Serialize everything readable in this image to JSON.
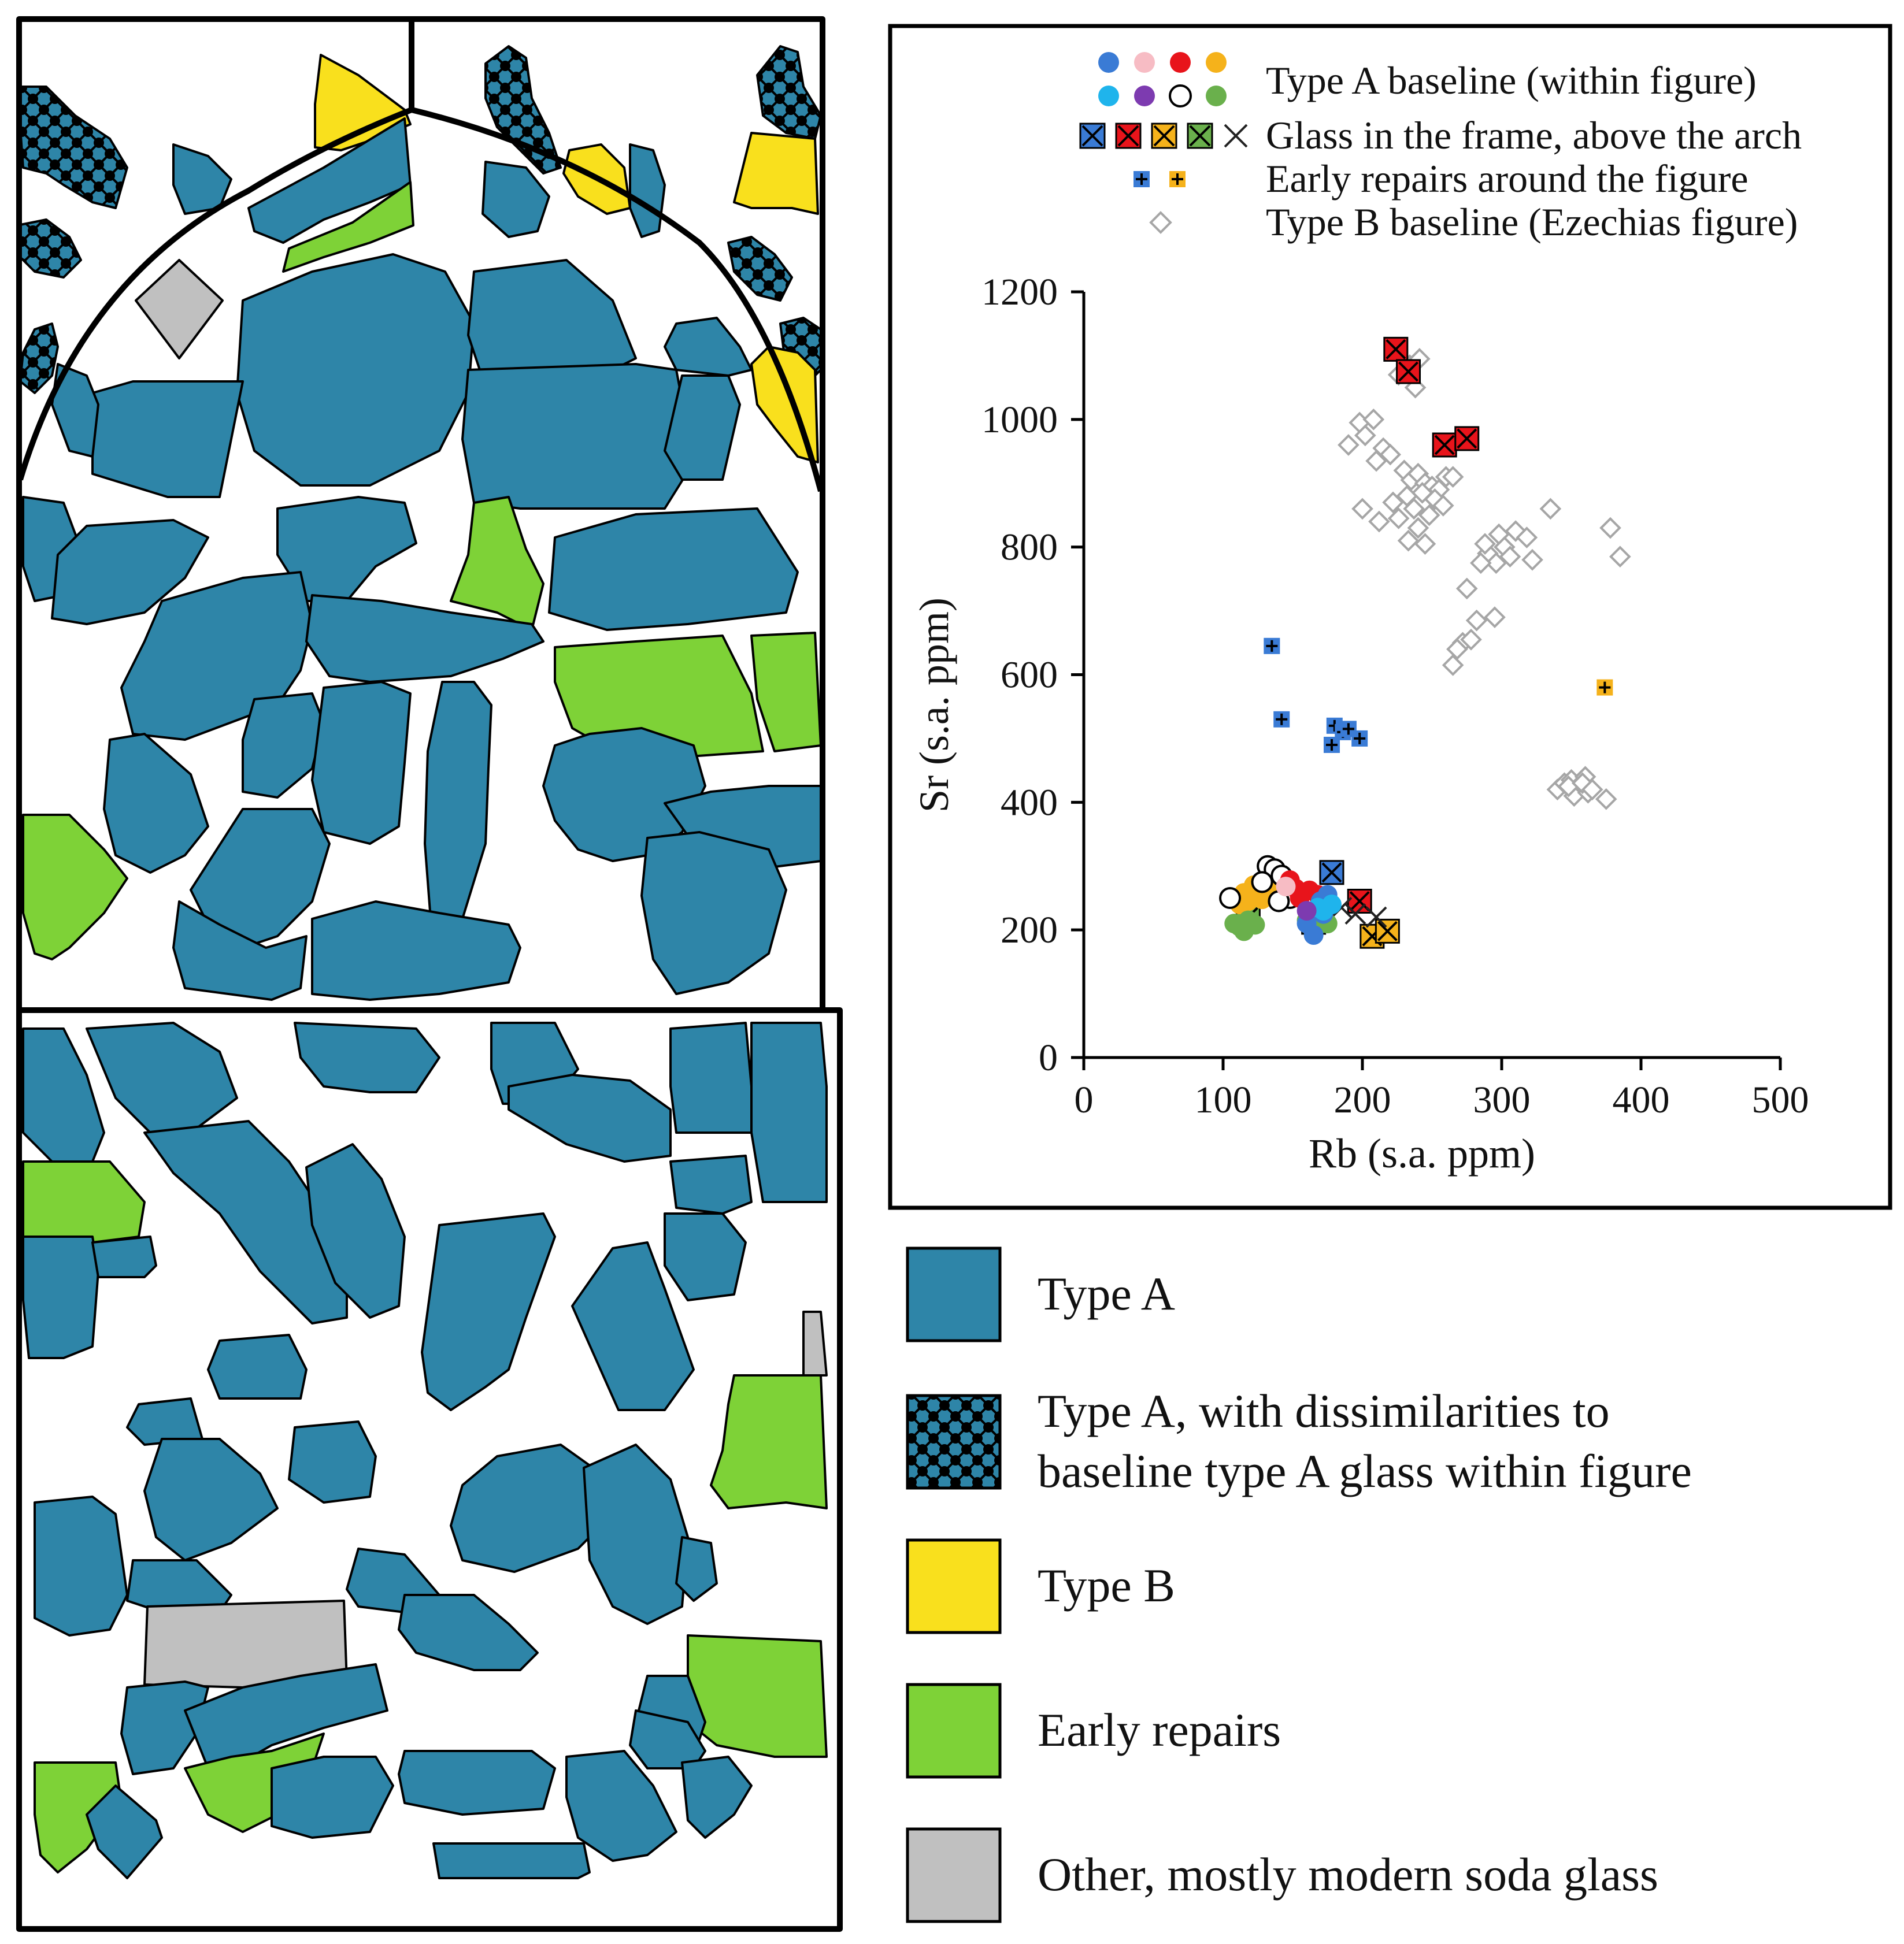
{
  "colors": {
    "type_a": "#2e85a8",
    "type_b": "#f9e01d",
    "early_repairs": "#7ed237",
    "other": "#c0c0c0",
    "outline": "#000000",
    "type_b_baseline": "#a6a6a6"
  },
  "material_legend": [
    {
      "key": "type_a",
      "lines": [
        "Type A"
      ],
      "swatch": "type-a-swatch"
    },
    {
      "key": "type_a_dissimilar",
      "lines": [
        "Type A, with dissimilarities to",
        "baseline type A glass within figure"
      ],
      "swatch": "type-a-dissimilar-swatch"
    },
    {
      "key": "type_b",
      "lines": [
        "Type B"
      ],
      "swatch": "type-b-swatch"
    },
    {
      "key": "early_repairs",
      "lines": [
        "Early repairs"
      ],
      "swatch": "early-repairs-swatch"
    },
    {
      "key": "other",
      "lines": [
        "Other, mostly modern soda glass"
      ],
      "swatch": "other-swatch"
    }
  ],
  "chart_data": {
    "type": "scatter",
    "xlabel": "Rb (s.a. ppm)",
    "ylabel": "Sr (s.a. ppm)",
    "xlim": [
      0,
      500
    ],
    "ylim": [
      0,
      1200
    ],
    "xticks": [
      0,
      100,
      200,
      300,
      400,
      500
    ],
    "yticks": [
      0,
      200,
      400,
      600,
      800,
      1000,
      1200
    ],
    "grid": false,
    "legend_position": "top",
    "legend": [
      {
        "label": "Type A baseline (within figure)",
        "marker": "filled-circles",
        "colors": [
          "#3a7bd5",
          "#f7bcc4",
          "#e8141b",
          "#f5b21b",
          "#1fb4ec",
          "#7d3bb0",
          "#ffffff",
          "#6ab04c"
        ]
      },
      {
        "label": "Glass in the frame, above the arch",
        "marker": "crossed-squares",
        "colors": [
          "#3a7bd5",
          "#e8141b",
          "#f5b21b",
          "#6ab04c",
          "none"
        ]
      },
      {
        "label": "Early repairs around the figure",
        "marker": "plus-squares",
        "colors": [
          "#3a7bd5",
          "#f5b21b"
        ]
      },
      {
        "label": "Type B baseline (Ezechias figure)",
        "marker": "open-diamond",
        "colors": [
          "#a6a6a6"
        ]
      }
    ],
    "series": [
      {
        "marker": "diamond",
        "color": "#a6a6a6",
        "points": [
          [
            225,
            1105
          ],
          [
            234,
            1085
          ],
          [
            241,
            1095
          ],
          [
            226,
            1070
          ],
          [
            238,
            1050
          ],
          [
            198,
            995
          ],
          [
            208,
            1000
          ],
          [
            202,
            975
          ],
          [
            215,
            955
          ],
          [
            190,
            960
          ],
          [
            210,
            935
          ],
          [
            220,
            945
          ],
          [
            230,
            920
          ],
          [
            235,
            905
          ],
          [
            240,
            915
          ],
          [
            245,
            900
          ],
          [
            250,
            895
          ],
          [
            255,
            890
          ],
          [
            260,
            910
          ],
          [
            232,
            880
          ],
          [
            243,
            885
          ],
          [
            252,
            875
          ],
          [
            222,
            870
          ],
          [
            237,
            860
          ],
          [
            248,
            850
          ],
          [
            258,
            865
          ],
          [
            226,
            845
          ],
          [
            212,
            840
          ],
          [
            200,
            860
          ],
          [
            240,
            830
          ],
          [
            245,
            805
          ],
          [
            233,
            810
          ],
          [
            265,
            910
          ],
          [
            335,
            860
          ],
          [
            290,
            790
          ],
          [
            298,
            820
          ],
          [
            302,
            800
          ],
          [
            310,
            825
          ],
          [
            318,
            815
          ],
          [
            322,
            780
          ],
          [
            296,
            775
          ],
          [
            306,
            785
          ],
          [
            285,
            775
          ],
          [
            288,
            805
          ],
          [
            275,
            735
          ],
          [
            282,
            685
          ],
          [
            295,
            690
          ],
          [
            272,
            650
          ],
          [
            268,
            640
          ],
          [
            265,
            615
          ],
          [
            278,
            655
          ],
          [
            378,
            830
          ],
          [
            385,
            785
          ],
          [
            340,
            420
          ],
          [
            345,
            430
          ],
          [
            350,
            435
          ],
          [
            355,
            425
          ],
          [
            360,
            440
          ],
          [
            352,
            410
          ],
          [
            362,
            415
          ],
          [
            348,
            425
          ],
          [
            358,
            430
          ],
          [
            375,
            405
          ],
          [
            365,
            420
          ]
        ]
      },
      {
        "marker": "crossed-square",
        "color": "#e8141b",
        "points": [
          [
            224,
            1110
          ],
          [
            233,
            1075
          ],
          [
            259,
            960
          ],
          [
            275,
            970
          ],
          [
            198,
            245
          ]
        ]
      },
      {
        "marker": "crossed-square",
        "color": "#3a7bd5",
        "points": [
          [
            178,
            290
          ]
        ]
      },
      {
        "marker": "crossed-square",
        "color": "#f5b21b",
        "points": [
          [
            207,
            190
          ],
          [
            218,
            198
          ]
        ]
      },
      {
        "marker": "crossed-square",
        "color": "#6ab04c",
        "points": [
          [
            118,
            220
          ],
          [
            165,
            212
          ]
        ]
      },
      {
        "marker": "cross",
        "color": "#222222",
        "points": [
          [
            185,
            235
          ],
          [
            195,
            225
          ],
          [
            210,
            220
          ]
        ]
      },
      {
        "marker": "plus-square",
        "color": "#3a7bd5",
        "points": [
          [
            135,
            645
          ],
          [
            142,
            530
          ],
          [
            178,
            490
          ],
          [
            180,
            520
          ],
          [
            186,
            510
          ],
          [
            190,
            515
          ],
          [
            198,
            500
          ]
        ]
      },
      {
        "marker": "plus-square",
        "color": "#f5b21b",
        "points": [
          [
            374,
            580
          ]
        ]
      },
      {
        "marker": "circle",
        "color": "#f5b21b",
        "points": [
          [
            110,
            250
          ],
          [
            115,
            258
          ],
          [
            120,
            262
          ],
          [
            125,
            255
          ],
          [
            130,
            265
          ],
          [
            135,
            270
          ],
          [
            118,
            245
          ],
          [
            128,
            248
          ],
          [
            138,
            262
          ],
          [
            112,
            240
          ],
          [
            122,
            270
          ]
        ]
      },
      {
        "marker": "circle",
        "color": "#6ab04c",
        "points": [
          [
            108,
            210
          ],
          [
            112,
            205
          ],
          [
            118,
            215
          ],
          [
            123,
            208
          ],
          [
            115,
            198
          ],
          [
            165,
            205
          ],
          [
            160,
            215
          ],
          [
            175,
            210
          ]
        ]
      },
      {
        "marker": "circle",
        "color": "#ffffff",
        "points": [
          [
            132,
            300
          ],
          [
            137,
            295
          ],
          [
            142,
            285
          ],
          [
            128,
            275
          ],
          [
            148,
            250
          ],
          [
            140,
            245
          ],
          [
            105,
            250
          ]
        ]
      },
      {
        "marker": "circle",
        "color": "#e8141b",
        "points": [
          [
            148,
            278
          ],
          [
            152,
            265
          ],
          [
            157,
            258
          ],
          [
            162,
            262
          ],
          [
            168,
            255
          ],
          [
            155,
            250
          ]
        ]
      },
      {
        "marker": "circle",
        "color": "#3a7bd5",
        "points": [
          [
            165,
            192
          ],
          [
            170,
            245
          ],
          [
            175,
            255
          ],
          [
            160,
            210
          ],
          [
            172,
            225
          ]
        ]
      },
      {
        "marker": "circle",
        "color": "#1fb4ec",
        "points": [
          [
            168,
            235
          ],
          [
            172,
            230
          ],
          [
            178,
            240
          ]
        ]
      },
      {
        "marker": "circle",
        "color": "#7d3bb0",
        "points": [
          [
            160,
            230
          ]
        ]
      },
      {
        "marker": "circle",
        "color": "#f7bcc4",
        "points": [
          [
            145,
            268
          ]
        ]
      }
    ]
  }
}
